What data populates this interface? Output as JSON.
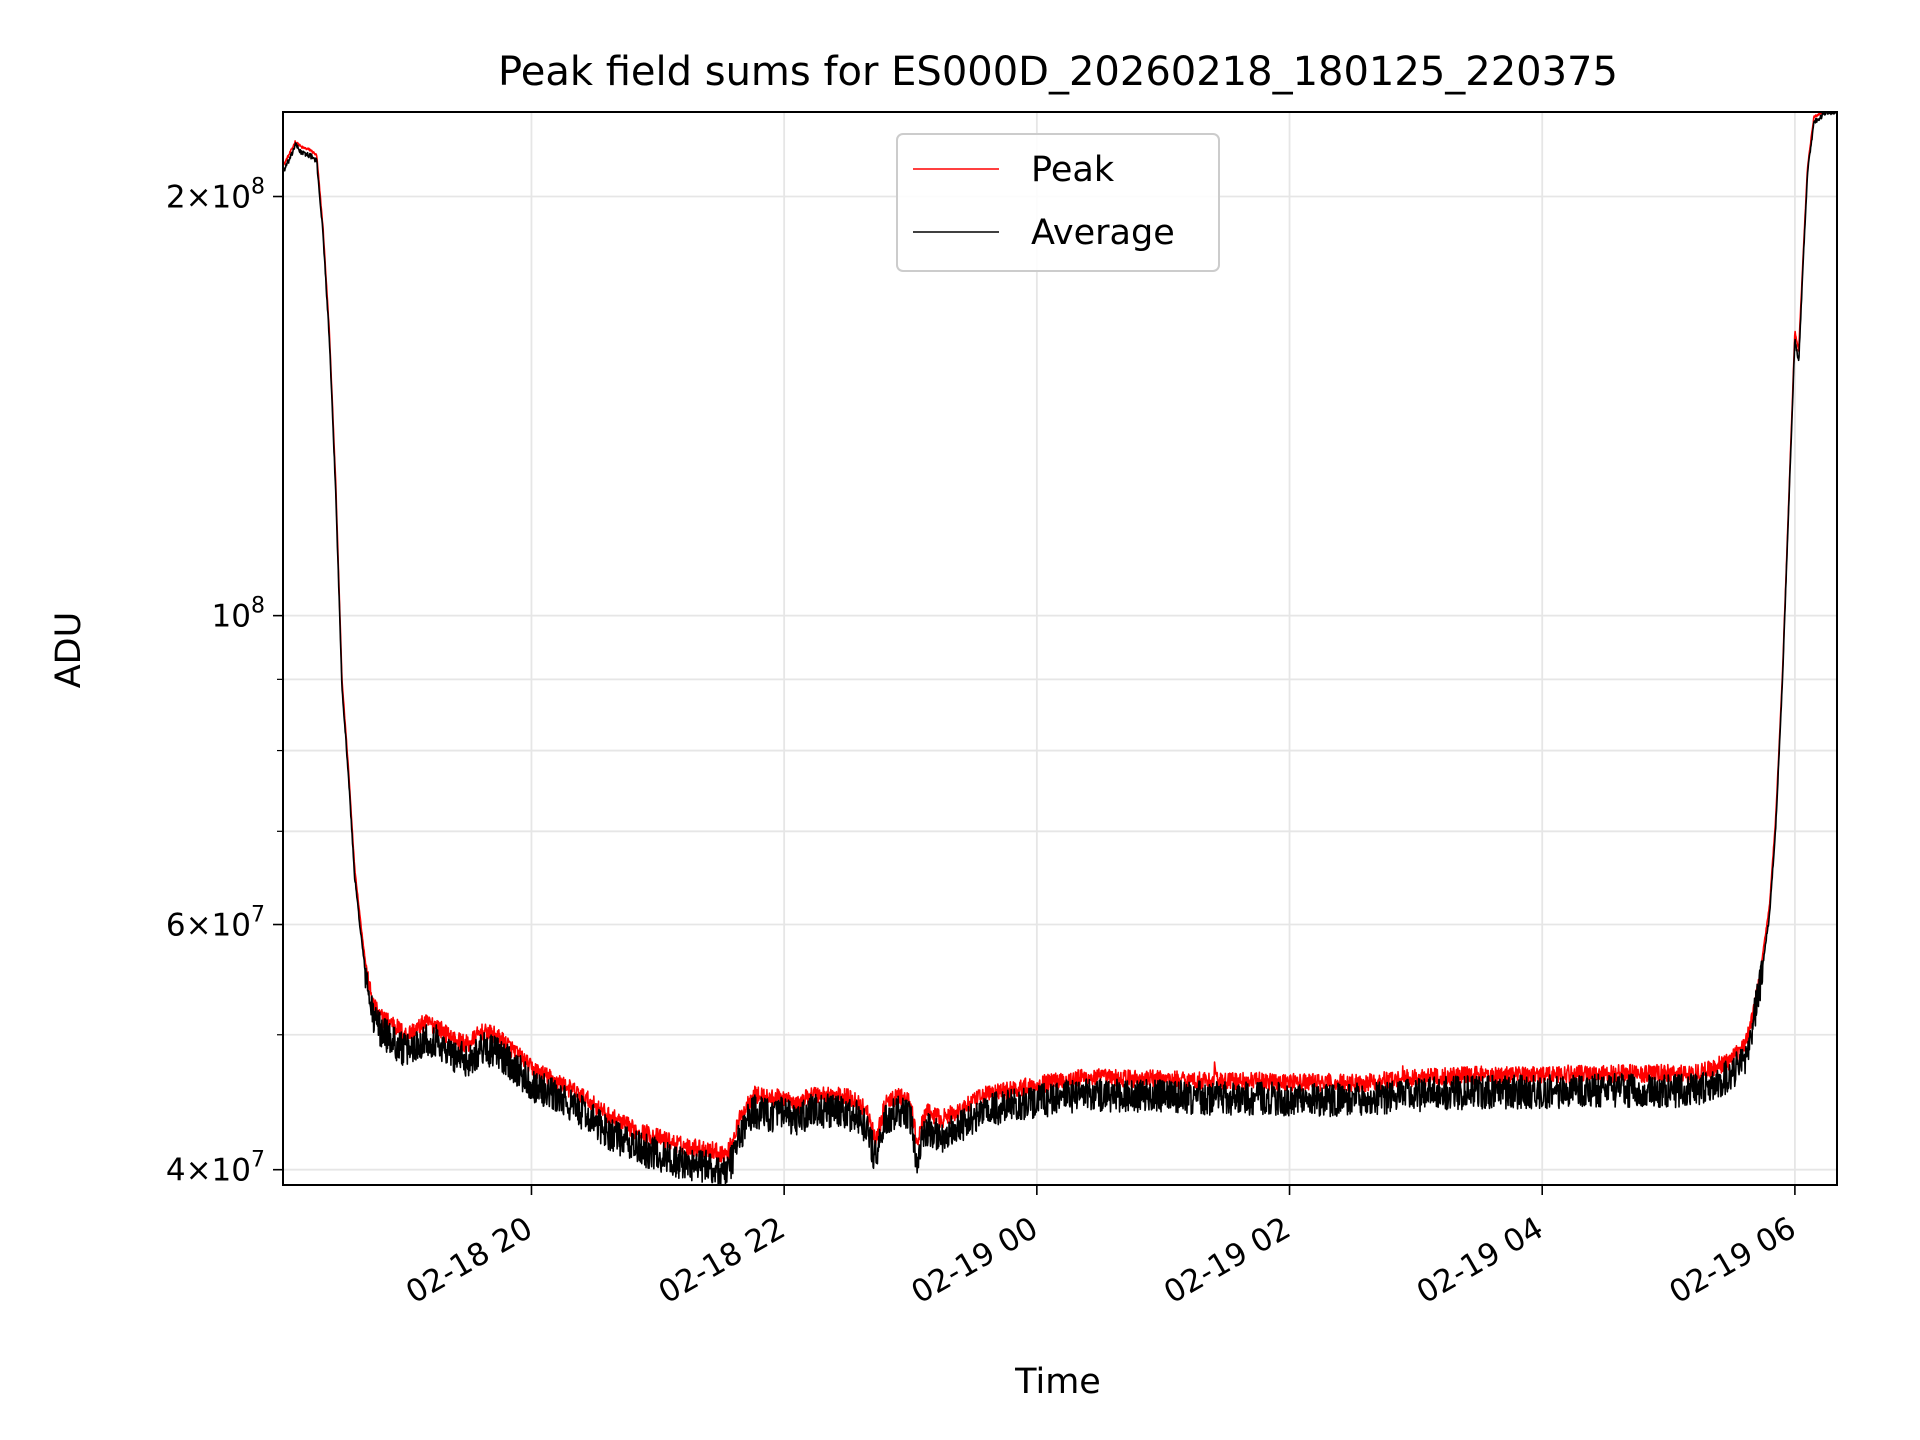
{
  "chart_data": {
    "type": "line",
    "title": "Peak field sums for ES000D_20260218_180125_220375",
    "xlabel": "Time",
    "ylabel": "ADU",
    "yscale": "log",
    "ylim": [
      39000000,
      230000000
    ],
    "xlim_hours": [
      18.0333,
      30.3333
    ],
    "grid": true,
    "legend_position": "top-center",
    "x_ticks": [
      {
        "hour": 20,
        "label": "02-18 20"
      },
      {
        "hour": 22,
        "label": "02-18 22"
      },
      {
        "hour": 24,
        "label": "02-19 00"
      },
      {
        "hour": 26,
        "label": "02-19 02"
      },
      {
        "hour": 28,
        "label": "02-19 04"
      },
      {
        "hour": 30,
        "label": "02-19 06"
      }
    ],
    "y_ticks": [
      {
        "value": 40000000,
        "base": "4×10",
        "exp": "7"
      },
      {
        "value": 60000000,
        "base": "6×10",
        "exp": "7"
      },
      {
        "value": 100000000,
        "base": "10",
        "exp": "8"
      },
      {
        "value": 200000000,
        "base": "2×10",
        "exp": "8"
      }
    ],
    "y_minor_ticks": [
      50000000,
      70000000,
      80000000,
      90000000
    ],
    "series": [
      {
        "name": "Peak",
        "color": "#ff0000",
        "noise": 0.015,
        "points": [
          [
            18.03,
            210000000
          ],
          [
            18.1,
            216000000
          ],
          [
            18.13,
            219000000
          ],
          [
            18.18,
            217000000
          ],
          [
            18.25,
            216000000
          ],
          [
            18.3,
            214000000
          ],
          [
            18.35,
            190000000
          ],
          [
            18.4,
            160000000
          ],
          [
            18.45,
            125000000
          ],
          [
            18.5,
            90000000
          ],
          [
            18.55,
            78000000
          ],
          [
            18.6,
            66000000
          ],
          [
            18.65,
            60000000
          ],
          [
            18.7,
            55000000
          ],
          [
            18.75,
            52500000
          ],
          [
            18.8,
            51500000
          ],
          [
            18.9,
            51000000
          ],
          [
            19.0,
            50000000
          ],
          [
            19.1,
            50500000
          ],
          [
            19.15,
            51000000
          ],
          [
            19.25,
            50800000
          ],
          [
            19.35,
            49800000
          ],
          [
            19.5,
            49200000
          ],
          [
            19.6,
            50200000
          ],
          [
            19.7,
            50000000
          ],
          [
            19.8,
            49300000
          ],
          [
            19.9,
            48300000
          ],
          [
            20.0,
            47300000
          ],
          [
            20.2,
            46300000
          ],
          [
            20.4,
            45200000
          ],
          [
            20.6,
            43800000
          ],
          [
            20.8,
            42800000
          ],
          [
            21.0,
            42200000
          ],
          [
            21.2,
            41600000
          ],
          [
            21.4,
            41400000
          ],
          [
            21.55,
            41000000
          ],
          [
            21.65,
            43500000
          ],
          [
            21.75,
            45300000
          ],
          [
            21.9,
            45000000
          ],
          [
            22.0,
            45100000
          ],
          [
            22.1,
            44400000
          ],
          [
            22.2,
            45300000
          ],
          [
            22.35,
            45300000
          ],
          [
            22.55,
            45000000
          ],
          [
            22.65,
            44200000
          ],
          [
            22.72,
            42000000
          ],
          [
            22.8,
            44500000
          ],
          [
            22.9,
            45200000
          ],
          [
            23.0,
            44700000
          ],
          [
            23.05,
            41800000
          ],
          [
            23.12,
            44000000
          ],
          [
            23.25,
            43500000
          ],
          [
            23.4,
            44200000
          ],
          [
            23.6,
            45300000
          ],
          [
            23.8,
            45700000
          ],
          [
            24.0,
            46000000
          ],
          [
            24.2,
            46400000
          ],
          [
            24.4,
            46600000
          ],
          [
            24.8,
            46500000
          ],
          [
            25.2,
            46400000
          ],
          [
            25.4,
            46300000
          ],
          [
            25.41,
            47800000
          ],
          [
            25.42,
            46300000
          ],
          [
            25.8,
            46300000
          ],
          [
            26.2,
            46200000
          ],
          [
            26.6,
            46200000
          ],
          [
            26.89,
            46500000
          ],
          [
            26.9,
            47000000
          ],
          [
            26.91,
            46500000
          ],
          [
            27.2,
            46700000
          ],
          [
            27.6,
            46800000
          ],
          [
            28.0,
            46800000
          ],
          [
            28.4,
            46900000
          ],
          [
            28.8,
            46900000
          ],
          [
            29.2,
            46900000
          ],
          [
            29.35,
            47300000
          ],
          [
            29.5,
            48000000
          ],
          [
            29.6,
            49000000
          ],
          [
            29.65,
            51000000
          ],
          [
            29.72,
            55000000
          ],
          [
            29.8,
            62000000
          ],
          [
            29.85,
            72000000
          ],
          [
            29.9,
            90000000
          ],
          [
            29.95,
            120000000
          ],
          [
            30.0,
            160000000
          ],
          [
            30.03,
            155000000
          ],
          [
            30.07,
            185000000
          ],
          [
            30.1,
            210000000
          ],
          [
            30.15,
            228000000
          ],
          [
            30.25,
            231000000
          ],
          [
            30.33,
            231000000
          ]
        ]
      },
      {
        "name": "Average",
        "color": "#000000",
        "noise": 0.028,
        "points": [
          [
            18.03,
            208000000
          ],
          [
            18.1,
            214000000
          ],
          [
            18.13,
            218000000
          ],
          [
            18.18,
            215000000
          ],
          [
            18.25,
            214000000
          ],
          [
            18.3,
            212000000
          ],
          [
            18.35,
            188000000
          ],
          [
            18.4,
            158000000
          ],
          [
            18.45,
            123000000
          ],
          [
            18.5,
            89000000
          ],
          [
            18.55,
            77000000
          ],
          [
            18.6,
            65000000
          ],
          [
            18.65,
            59000000
          ],
          [
            18.7,
            54000000
          ],
          [
            18.75,
            51500000
          ],
          [
            18.8,
            50500000
          ],
          [
            18.9,
            49500000
          ],
          [
            19.0,
            48700000
          ],
          [
            19.1,
            49200000
          ],
          [
            19.15,
            49700000
          ],
          [
            19.25,
            49500000
          ],
          [
            19.35,
            48500000
          ],
          [
            19.5,
            47900000
          ],
          [
            19.6,
            48900000
          ],
          [
            19.7,
            48700000
          ],
          [
            19.8,
            48000000
          ],
          [
            19.9,
            47100000
          ],
          [
            20.0,
            46100000
          ],
          [
            20.2,
            45100000
          ],
          [
            20.4,
            44000000
          ],
          [
            20.6,
            42600000
          ],
          [
            20.8,
            41600000
          ],
          [
            21.0,
            41000000
          ],
          [
            21.2,
            40400000
          ],
          [
            21.4,
            40200000
          ],
          [
            21.55,
            39800000
          ],
          [
            21.65,
            42300000
          ],
          [
            21.75,
            44100000
          ],
          [
            21.9,
            43800000
          ],
          [
            22.0,
            43900000
          ],
          [
            22.1,
            43200000
          ],
          [
            22.2,
            44100000
          ],
          [
            22.35,
            44100000
          ],
          [
            22.55,
            43800000
          ],
          [
            22.65,
            43000000
          ],
          [
            22.72,
            40800000
          ],
          [
            22.8,
            43300000
          ],
          [
            22.9,
            44000000
          ],
          [
            23.0,
            43500000
          ],
          [
            23.05,
            40600000
          ],
          [
            23.12,
            42800000
          ],
          [
            23.25,
            42300000
          ],
          [
            23.4,
            43000000
          ],
          [
            23.6,
            44100000
          ],
          [
            23.8,
            44500000
          ],
          [
            24.0,
            44800000
          ],
          [
            24.2,
            45100000
          ],
          [
            24.4,
            45300000
          ],
          [
            24.8,
            45200000
          ],
          [
            25.2,
            45100000
          ],
          [
            25.4,
            45000000
          ],
          [
            25.8,
            45000000
          ],
          [
            26.2,
            44900000
          ],
          [
            26.6,
            44900000
          ],
          [
            27.2,
            45400000
          ],
          [
            27.6,
            45500000
          ],
          [
            28.0,
            45500000
          ],
          [
            28.4,
            45600000
          ],
          [
            28.8,
            45600000
          ],
          [
            29.2,
            45600000
          ],
          [
            29.35,
            46000000
          ],
          [
            29.5,
            46900000
          ],
          [
            29.6,
            48000000
          ],
          [
            29.65,
            50000000
          ],
          [
            29.72,
            54000000
          ],
          [
            29.8,
            61000000
          ],
          [
            29.85,
            71000000
          ],
          [
            29.9,
            89000000
          ],
          [
            29.95,
            119000000
          ],
          [
            30.0,
            158000000
          ],
          [
            30.03,
            152000000
          ],
          [
            30.07,
            183000000
          ],
          [
            30.1,
            208000000
          ],
          [
            30.15,
            226000000
          ],
          [
            30.25,
            230000000
          ],
          [
            30.33,
            230000000
          ]
        ]
      }
    ]
  }
}
